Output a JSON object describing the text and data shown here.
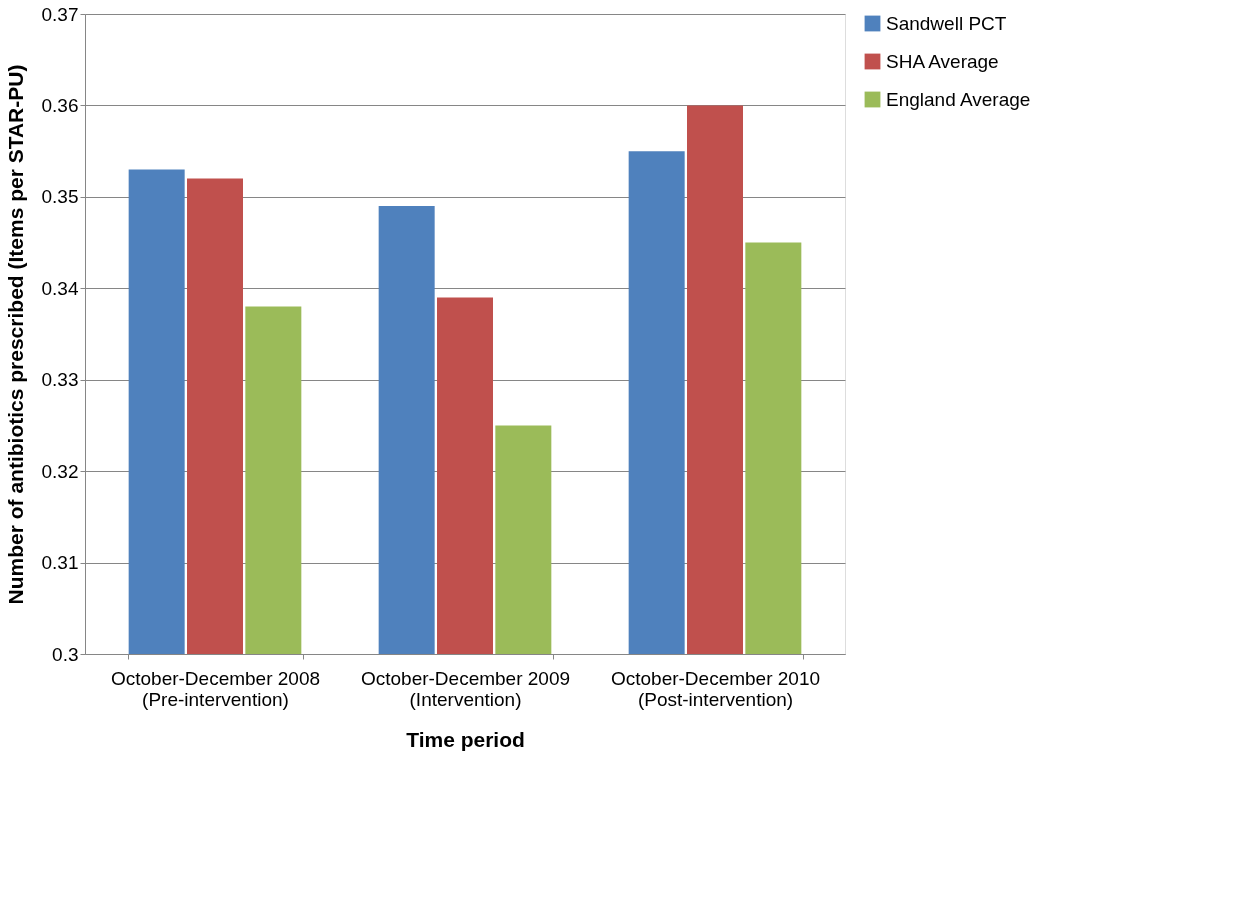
{
  "chart_data": {
    "type": "bar",
    "xlabel": "Time period",
    "ylabel": "Number of antibiotics prescribed (Items per STAR-PU)",
    "categories": [
      "October-December 2008\n(Pre-intervention)",
      "October-December 2009\n(Intervention)",
      "October-December 2010\n(Post-intervention)"
    ],
    "series": [
      {
        "name": "Sandwell PCT",
        "color": "#4f81bd",
        "values": [
          0.353,
          0.349,
          0.355
        ]
      },
      {
        "name": "SHA Average",
        "color": "#c0504d",
        "values": [
          0.352,
          0.339,
          0.36
        ]
      },
      {
        "name": "England Average",
        "color": "#9bbb59",
        "values": [
          0.338,
          0.325,
          0.345
        ]
      }
    ],
    "ylim": [
      0.3,
      0.37
    ],
    "yticks": [
      0.3,
      0.31,
      0.32,
      0.33,
      0.34,
      0.35,
      0.36,
      0.37
    ],
    "grid": "y",
    "legend": "right"
  }
}
